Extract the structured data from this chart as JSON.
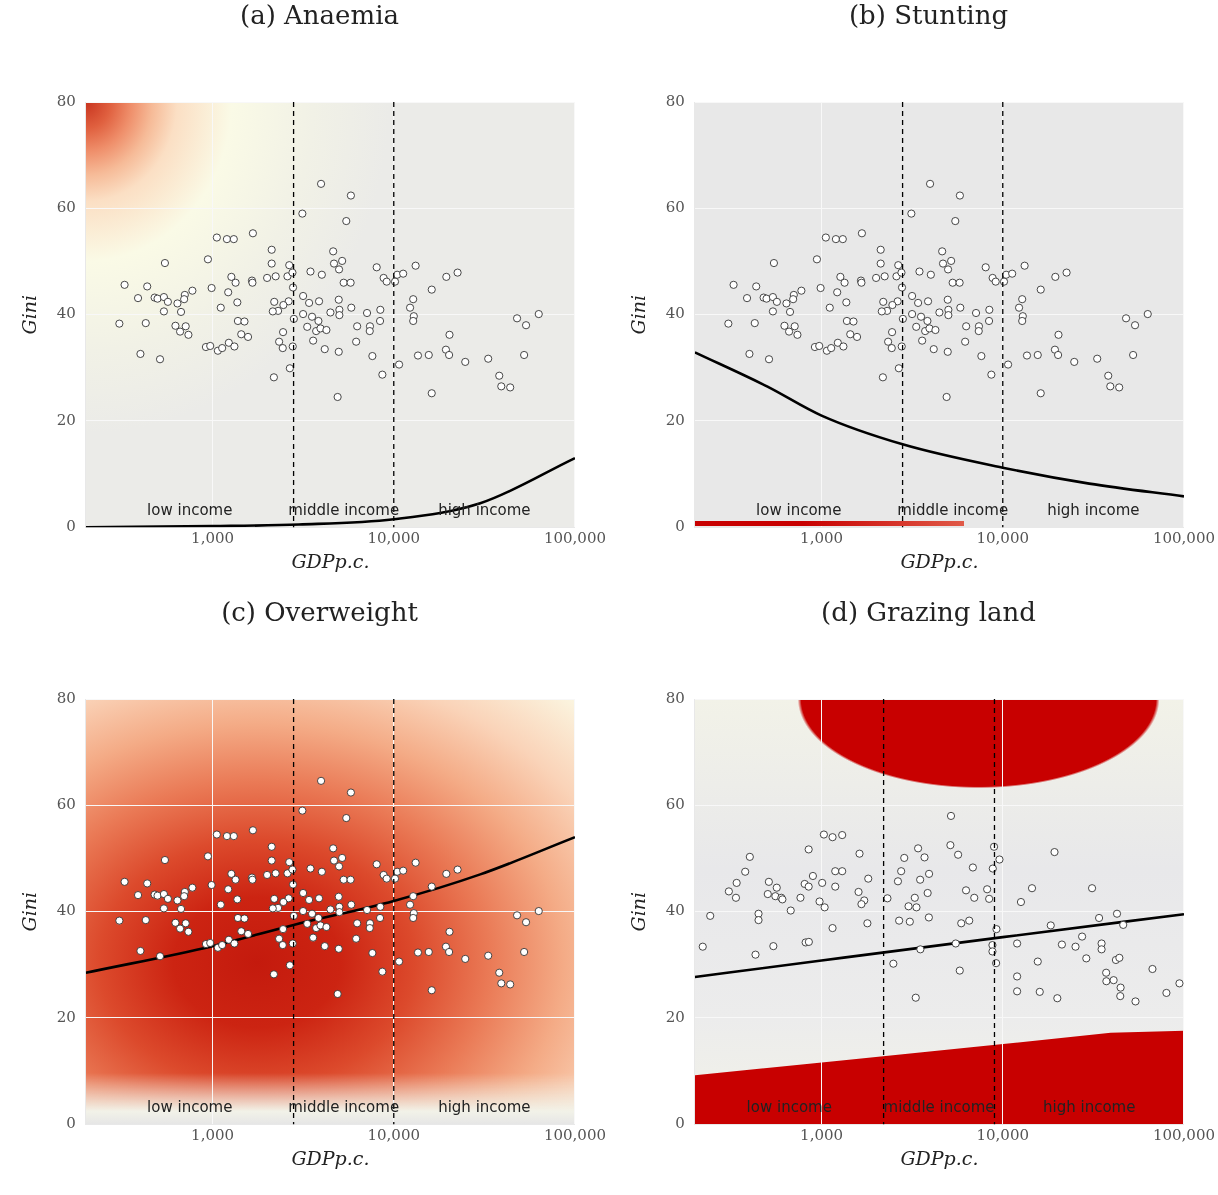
{
  "chart_data": [
    {
      "type": "scatter",
      "title": "(a) Anaemia",
      "xlabel": "GDPp.c.",
      "ylabel": "Gini",
      "log": "x",
      "xlim": [
        200,
        100000
      ],
      "xticks": [
        {
          "value": 1000,
          "label": "1,000"
        },
        {
          "value": 10000,
          "label": "10,000"
        },
        {
          "value": 100000,
          "label": "100,000"
        }
      ],
      "ylim": [
        0,
        80
      ],
      "yticks": [
        0,
        20,
        40,
        60,
        80
      ],
      "grid": true,
      "marker": "circle",
      "series": [
        {
          "type": "scatter",
          "color": "#ffffff",
          "x": [
            3970,
            3130,
            1056,
            1200,
            1310,
            1670,
            2120,
            546,
            943,
            2120,
            2650,
            1270,
            1340,
            1650,
            1660,
            2000,
            2230,
            2590,
            2760,
            3470,
            4010,
            327,
            436,
            988,
            774,
            388,
            479,
            497,
            539,
            567,
            640,
            703,
            697,
            1220,
            2780,
            3160,
            3410,
            3870,
            2630,
            2190,
            2300,
            2460,
            2150,
            539,
            670,
            1110,
            1370,
            306,
            428,
            624,
            711,
            662,
            736,
            1380,
            1500,
            1440,
            1570,
            2810,
            3160,
            3540,
            3840,
            3330,
            3730,
            3940,
            4250,
            3590,
            4160,
            4470,
            2450,
            2330,
            2440,
            2770,
            919,
            971,
            1070,
            1130,
            1230,
            1320,
            400,
            513,
            2670,
            2180,
            5800,
            5470,
            4630,
            4680,
            5190,
            4990,
            5290,
            5780,
            8050,
            8790,
            9140,
            10160,
            10440,
            11270,
            13200,
            16200,
            19500,
            22500,
            4970,
            5010,
            5010,
            5830,
            7120,
            8430,
            8400,
            6280,
            7390,
            7370,
            6200,
            4970,
            7620,
            8650,
            10700,
            4900,
            12800,
            12300,
            12900,
            12800,
            20300,
            19400,
            20200,
            13600,
            15600,
            24800,
            33200,
            16200,
            38200,
            39200,
            43900,
            47900,
            53700,
            63100,
            52400
          ],
          "values": [
            64.6,
            59.0,
            54.5,
            54.2,
            54.2,
            55.3,
            52.2,
            49.7,
            50.4,
            49.6,
            49.3,
            47.1,
            46.0,
            46.4,
            46.0,
            46.9,
            47.2,
            47.2,
            47.9,
            48.1,
            47.5,
            45.6,
            45.3,
            45.0,
            44.5,
            43.1,
            43.2,
            43.0,
            43.3,
            42.4,
            42.1,
            43.7,
            42.9,
            44.2,
            45.1,
            43.5,
            42.2,
            42.5,
            42.5,
            42.4,
            40.7,
            41.8,
            40.6,
            40.6,
            40.5,
            41.3,
            42.3,
            38.3,
            38.4,
            37.9,
            37.8,
            36.8,
            36.2,
            38.8,
            38.7,
            36.3,
            35.8,
            39.2,
            40.1,
            39.6,
            38.8,
            37.7,
            36.9,
            37.4,
            37.1,
            35.1,
            33.5,
            40.4,
            36.7,
            34.9,
            33.7,
            34.0,
            33.9,
            34.1,
            33.2,
            33.7,
            34.7,
            34.0,
            32.6,
            31.6,
            29.9,
            28.2,
            62.4,
            57.6,
            51.9,
            49.6,
            50.1,
            48.5,
            46.0,
            46.0,
            48.9,
            46.9,
            46.2,
            46.2,
            47.5,
            47.7,
            49.2,
            44.7,
            47.1,
            47.9,
            42.8,
            40.9,
            39.9,
            41.3,
            40.3,
            40.9,
            38.8,
            37.8,
            37.8,
            36.9,
            34.9,
            33.0,
            32.2,
            28.7,
            30.6,
            24.5,
            42.9,
            41.3,
            39.7,
            38.8,
            36.2,
            33.4,
            32.4,
            32.3,
            32.4,
            31.1,
            31.7,
            25.2,
            28.5,
            26.5,
            26.3,
            39.3,
            38.0,
            40.1,
            32.4
          ]
        },
        {
          "type": "line",
          "color": "#000000",
          "marker": "none",
          "x": [
            200,
            1000,
            3000,
            10000,
            30000,
            100000
          ],
          "values": [
            0,
            0.2,
            0.5,
            1.5,
            4.5,
            13
          ]
        }
      ],
      "ref_lines": [
        {
          "axis": "x",
          "value": 2800,
          "line_style": "dashed",
          "color": "#000000"
        },
        {
          "axis": "x",
          "value": 10000,
          "line_style": "dashed",
          "color": "#000000"
        }
      ],
      "annotations": [
        "low income",
        "middle income",
        "high income"
      ]
    },
    {
      "type": "scatter",
      "title": "(b) Stunting",
      "xlabel": "GDPp.c.",
      "ylabel": "Gini",
      "log": "x",
      "xlim": [
        200,
        100000
      ],
      "xticks": [
        {
          "value": 1000,
          "label": "1,000"
        },
        {
          "value": 10000,
          "label": "10,000"
        },
        {
          "value": 100000,
          "label": "100,000"
        }
      ],
      "ylim": [
        0,
        80
      ],
      "yticks": [
        0,
        20,
        40,
        60,
        80
      ],
      "grid": true,
      "marker": "circle",
      "series": [
        {
          "type": "scatter",
          "color": "#ffffff",
          "x": [
            3970,
            3130,
            1056,
            1200,
            1310,
            1670,
            2120,
            546,
            943,
            2120,
            2650,
            1270,
            1340,
            1650,
            1660,
            2000,
            2230,
            2590,
            2760,
            3470,
            4010,
            327,
            436,
            988,
            774,
            388,
            479,
            497,
            539,
            567,
            640,
            703,
            697,
            1220,
            2780,
            3160,
            3410,
            3870,
            2630,
            2190,
            2300,
            2460,
            2150,
            539,
            670,
            1110,
            1370,
            306,
            428,
            624,
            711,
            662,
            736,
            1380,
            1500,
            1440,
            1570,
            2810,
            3160,
            3540,
            3840,
            3330,
            3730,
            3940,
            4250,
            3590,
            4160,
            4470,
            2450,
            2330,
            2440,
            2770,
            919,
            971,
            1070,
            1130,
            1230,
            1320,
            400,
            513,
            2670,
            2180,
            5800,
            5470,
            4630,
            4680,
            5190,
            4990,
            5290,
            5780,
            8050,
            8790,
            9140,
            10160,
            10440,
            11270,
            13200,
            16200,
            19500,
            22500,
            4970,
            5010,
            5010,
            5830,
            7120,
            8430,
            8400,
            6280,
            7390,
            7370,
            6200,
            4970,
            7620,
            8650,
            10700,
            4900,
            12800,
            12300,
            12900,
            12800,
            20300,
            19400,
            20200,
            13600,
            15600,
            24800,
            33200,
            16200,
            38200,
            39200,
            43900,
            47900,
            53700,
            63100,
            52400
          ],
          "values": [
            64.6,
            59.0,
            54.5,
            54.2,
            54.2,
            55.3,
            52.2,
            49.7,
            50.4,
            49.6,
            49.3,
            47.1,
            46.0,
            46.4,
            46.0,
            46.9,
            47.2,
            47.2,
            47.9,
            48.1,
            47.5,
            45.6,
            45.3,
            45.0,
            44.5,
            43.1,
            43.2,
            43.0,
            43.3,
            42.4,
            42.1,
            43.7,
            42.9,
            44.2,
            45.1,
            43.5,
            42.2,
            42.5,
            42.5,
            42.4,
            40.7,
            41.8,
            40.6,
            40.6,
            40.5,
            41.3,
            42.3,
            38.3,
            38.4,
            37.9,
            37.8,
            36.8,
            36.2,
            38.8,
            38.7,
            36.3,
            35.8,
            39.2,
            40.1,
            39.6,
            38.8,
            37.7,
            36.9,
            37.4,
            37.1,
            35.1,
            33.5,
            40.4,
            36.7,
            34.9,
            33.7,
            34.0,
            33.9,
            34.1,
            33.2,
            33.7,
            34.7,
            34.0,
            32.6,
            31.6,
            29.9,
            28.2,
            62.4,
            57.6,
            51.9,
            49.6,
            50.1,
            48.5,
            46.0,
            46.0,
            48.9,
            46.9,
            46.2,
            46.2,
            47.5,
            47.7,
            49.2,
            44.7,
            47.1,
            47.9,
            42.8,
            40.9,
            39.9,
            41.3,
            40.3,
            40.9,
            38.8,
            37.8,
            37.8,
            36.9,
            34.9,
            33.0,
            32.2,
            28.7,
            30.6,
            24.5,
            42.9,
            41.3,
            39.7,
            38.8,
            36.2,
            33.4,
            32.4,
            32.3,
            32.4,
            31.1,
            31.7,
            25.2,
            28.5,
            26.5,
            26.3,
            39.3,
            38.0,
            40.1,
            32.4
          ]
        },
        {
          "type": "line",
          "color": "#000000",
          "marker": "none",
          "x": [
            200,
            500,
            1000,
            2800,
            10000,
            30000,
            100000
          ],
          "values": [
            32.9,
            26.5,
            21,
            15.6,
            11.2,
            8.2,
            5.8
          ]
        }
      ],
      "ref_lines": [
        {
          "axis": "x",
          "value": 2800,
          "line_style": "dashed",
          "color": "#000000"
        },
        {
          "axis": "x",
          "value": 10000,
          "line_style": "dashed",
          "color": "#000000"
        }
      ],
      "annotations": [
        "low income",
        "middle income",
        "high income"
      ]
    },
    {
      "type": "scatter",
      "title": "(c) Overweight",
      "xlabel": "GDPp.c.",
      "ylabel": "Gini",
      "log": "x",
      "xlim": [
        200,
        100000
      ],
      "xticks": [
        {
          "value": 1000,
          "label": "1,000"
        },
        {
          "value": 10000,
          "label": "10,000"
        },
        {
          "value": 100000,
          "label": "100,000"
        }
      ],
      "ylim": [
        0,
        80
      ],
      "yticks": [
        0,
        20,
        40,
        60,
        80
      ],
      "grid": true,
      "marker": "circle",
      "series": [
        {
          "type": "scatter",
          "color": "#ffffff",
          "x": [
            3970,
            3130,
            1056,
            1200,
            1310,
            1670,
            2120,
            546,
            943,
            2120,
            2650,
            1270,
            1340,
            1650,
            1660,
            2000,
            2230,
            2590,
            2760,
            3470,
            4010,
            327,
            436,
            988,
            774,
            388,
            479,
            497,
            539,
            567,
            640,
            703,
            697,
            1220,
            2780,
            3160,
            3410,
            3870,
            2630,
            2190,
            2300,
            2460,
            2150,
            539,
            670,
            1110,
            1370,
            306,
            428,
            624,
            711,
            662,
            736,
            1380,
            1500,
            1440,
            1570,
            2810,
            3160,
            3540,
            3840,
            3330,
            3730,
            3940,
            4250,
            3590,
            4160,
            4470,
            2450,
            2330,
            2440,
            2770,
            919,
            971,
            1070,
            1130,
            1230,
            1320,
            400,
            513,
            2670,
            2180,
            5800,
            5470,
            4630,
            4680,
            5190,
            4990,
            5290,
            5780,
            8050,
            8790,
            9140,
            10160,
            10440,
            11270,
            13200,
            16200,
            19500,
            22500,
            4970,
            5010,
            5010,
            5830,
            7120,
            8430,
            8400,
            6280,
            7390,
            7370,
            6200,
            4970,
            7620,
            8650,
            10700,
            4900,
            12800,
            12300,
            12900,
            12800,
            20300,
            19400,
            20200,
            13600,
            15600,
            24800,
            33200,
            16200,
            38200,
            39200,
            43900,
            47900,
            53700,
            63100,
            52400
          ],
          "values": [
            64.6,
            59.0,
            54.5,
            54.2,
            54.2,
            55.3,
            52.2,
            49.7,
            50.4,
            49.6,
            49.3,
            47.1,
            46.0,
            46.4,
            46.0,
            46.9,
            47.2,
            47.2,
            47.9,
            48.1,
            47.5,
            45.6,
            45.3,
            45.0,
            44.5,
            43.1,
            43.2,
            43.0,
            43.3,
            42.4,
            42.1,
            43.7,
            42.9,
            44.2,
            45.1,
            43.5,
            42.2,
            42.5,
            42.5,
            42.4,
            40.7,
            41.8,
            40.6,
            40.6,
            40.5,
            41.3,
            42.3,
            38.3,
            38.4,
            37.9,
            37.8,
            36.8,
            36.2,
            38.8,
            38.7,
            36.3,
            35.8,
            39.2,
            40.1,
            39.6,
            38.8,
            37.7,
            36.9,
            37.4,
            37.1,
            35.1,
            33.5,
            40.4,
            36.7,
            34.9,
            33.7,
            34.0,
            33.9,
            34.1,
            33.2,
            33.7,
            34.7,
            34.0,
            32.6,
            31.6,
            29.9,
            28.2,
            62.4,
            57.6,
            51.9,
            49.6,
            50.1,
            48.5,
            46.0,
            46.0,
            48.9,
            46.9,
            46.2,
            46.2,
            47.5,
            47.7,
            49.2,
            44.7,
            47.1,
            47.9,
            42.8,
            40.9,
            39.9,
            41.3,
            40.3,
            40.9,
            38.8,
            37.8,
            37.8,
            36.9,
            34.9,
            33.0,
            32.2,
            28.7,
            30.6,
            24.5,
            42.9,
            41.3,
            39.7,
            38.8,
            36.2,
            33.4,
            32.4,
            32.3,
            32.4,
            31.1,
            31.7,
            25.2,
            28.5,
            26.5,
            26.3,
            39.3,
            38.0,
            40.1,
            32.4
          ]
        },
        {
          "type": "line",
          "color": "#000000",
          "marker": "none",
          "x": [
            200,
            1000,
            2800,
            10000,
            30000,
            100000
          ],
          "values": [
            28.5,
            33.5,
            37.5,
            42,
            47,
            54
          ]
        }
      ],
      "ref_lines": [
        {
          "axis": "x",
          "value": 2800,
          "line_style": "dashed",
          "color": "#000000"
        },
        {
          "axis": "x",
          "value": 10000,
          "line_style": "dashed",
          "color": "#000000"
        }
      ],
      "annotations": [
        "low income",
        "middle income",
        "high income"
      ]
    },
    {
      "type": "scatter",
      "title": "(d) Grazing land",
      "xlabel": "GDPp.c.",
      "ylabel": "Gini",
      "log": "x",
      "xlim": [
        200,
        100000
      ],
      "xticks": [
        {
          "value": 1000,
          "label": "1,000"
        },
        {
          "value": 10000,
          "label": "10,000"
        },
        {
          "value": 100000,
          "label": "100,000"
        }
      ],
      "ylim": [
        0,
        80
      ],
      "yticks": [
        0,
        20,
        40,
        60,
        80
      ],
      "grid": true,
      "marker": "circle",
      "series": [
        {
          "type": "scatter",
          "color": "#ffffff",
          "x": [
            1030,
            1150,
            1300,
            849,
            402,
            1620,
            379,
            1190,
            1300,
            896,
            340,
            308,
            337,
            512,
            505,
            566,
            556,
            600,
            608,
            807,
            849,
            1008,
            1190,
            1810,
            765,
            676,
            975,
            1040,
            1600,
            1720,
            1660,
            1790,
            1150,
            449,
            449,
            243,
            221,
            432,
            542,
            817,
            851,
            2310,
            2860,
            3410,
            3700,
            2750,
            2640,
            3500,
            3850,
            3920,
            3270,
            3020,
            3340,
            2680,
            3070,
            3910,
            3510,
            2490,
            3310,
            5180,
            5140,
            5670,
            8950,
            9590,
            8810,
            6840,
            8200,
            8410,
            6270,
            6960,
            14500,
            19300,
            12600,
            31100,
            5900,
            6530,
            9230,
            18400,
            34000,
            42700,
            46200,
            5500,
            8770,
            8770,
            12000,
            21200,
            25200,
            27400,
            35100,
            35100,
            9190,
            5790,
            15600,
            28900,
            42100,
            44000,
            37200,
            37300,
            40900,
            44700,
            44500,
            67000,
            12000,
            12000,
            16000,
            20000,
            54000,
            80000,
            94400
          ],
          "values": [
            54.5,
            54.0,
            54.4,
            51.7,
            50.3,
            50.9,
            47.5,
            47.6,
            47.6,
            46.7,
            45.4,
            43.8,
            42.6,
            45.6,
            43.3,
            44.5,
            42.9,
            42.6,
            42.3,
            45.2,
            44.7,
            45.4,
            44.7,
            46.2,
            42.6,
            40.2,
            41.9,
            40.8,
            43.7,
            42.1,
            41.4,
            37.8,
            36.9,
            39.6,
            38.4,
            39.2,
            33.4,
            31.9,
            33.5,
            34.2,
            34.3,
            42.5,
            50.1,
            51.9,
            50.2,
            47.6,
            45.7,
            46.0,
            43.5,
            47.1,
            42.6,
            41.0,
            40.8,
            38.3,
            38.1,
            38.9,
            32.9,
            30.2,
            23.8,
            58.0,
            52.5,
            50.7,
            52.2,
            49.8,
            48.1,
            48.3,
            44.2,
            42.4,
            44.0,
            42.6,
            44.4,
            51.2,
            41.8,
            44.4,
            37.8,
            38.3,
            36.7,
            37.4,
            38.8,
            39.6,
            37.5,
            34.0,
            33.7,
            32.5,
            34.0,
            33.8,
            33.4,
            35.3,
            34.0,
            32.9,
            30.3,
            28.9,
            30.6,
            31.2,
            30.9,
            31.3,
            28.5,
            26.9,
            27.1,
            25.7,
            24.1,
            29.2,
            27.8,
            25.0,
            24.9,
            23.7,
            23.1,
            24.7,
            26.5
          ]
        },
        {
          "type": "line",
          "color": "#000000",
          "marker": "none",
          "x": [
            200,
            1000,
            10000,
            100000
          ],
          "values": [
            27.7,
            30.8,
            35.2,
            39.5
          ]
        }
      ],
      "ref_lines": [
        {
          "axis": "x",
          "value": 2200,
          "line_style": "dashed",
          "color": "#000000"
        },
        {
          "axis": "x",
          "value": 9000,
          "line_style": "dashed",
          "color": "#000000"
        }
      ],
      "annotations": [
        "low income",
        "middle income",
        "high income"
      ]
    }
  ]
}
